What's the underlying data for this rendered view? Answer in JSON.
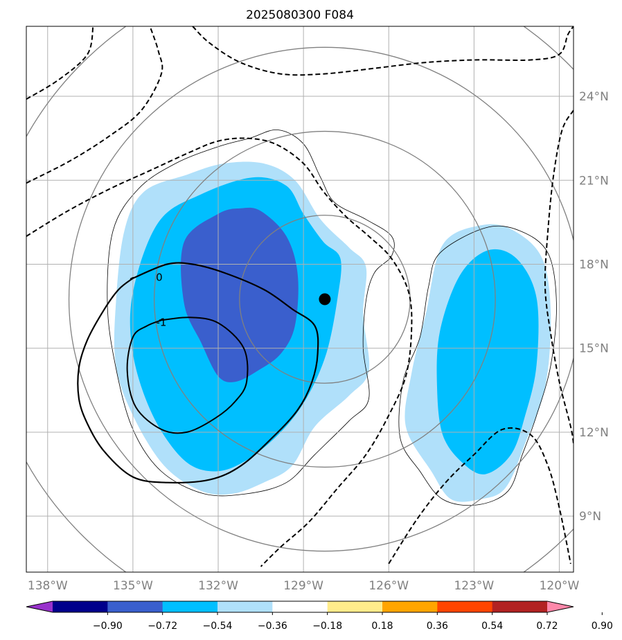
{
  "chart_data": {
    "type": "map-contour",
    "title": "2025080300 F084",
    "xlim": [
      -138.75,
      -119.5
    ],
    "ylim": [
      7.0,
      26.5
    ],
    "grid": true,
    "lon_ticks": [
      {
        "value": -138,
        "label": "138°W"
      },
      {
        "value": -135,
        "label": "135°W"
      },
      {
        "value": -132,
        "label": "132°W"
      },
      {
        "value": -129,
        "label": "129°W"
      },
      {
        "value": -126,
        "label": "126°W"
      },
      {
        "value": -123,
        "label": "123°W"
      },
      {
        "value": -120,
        "label": "120°W"
      }
    ],
    "lat_ticks": [
      {
        "value": 9,
        "label": "9°N"
      },
      {
        "value": 12,
        "label": "12°N"
      },
      {
        "value": 15,
        "label": "15°N"
      },
      {
        "value": 18,
        "label": "18°N"
      },
      {
        "value": 21,
        "label": "21°N"
      },
      {
        "value": 24,
        "label": "24°N"
      }
    ],
    "center_marker": {
      "lon": -128.25,
      "lat": 16.75
    },
    "range_rings_center": {
      "lon": -128.25,
      "lat": 16.75
    },
    "range_rings_radius_deg": [
      3,
      6,
      9,
      12
    ],
    "colorbar": {
      "levels": [
        "−0.90",
        "−0.72",
        "−0.54",
        "−0.36",
        "−0.18",
        "0.18",
        "0.36",
        "0.54",
        "0.72",
        "0.90"
      ],
      "colors": [
        "#9932cc",
        "#00008b",
        "#3a5fcd",
        "#00bfff",
        "#b0e0fa",
        "#ffffff",
        "#ffec8b",
        "#ffa500",
        "#ff4500",
        "#b22222",
        "#ff88aa"
      ],
      "extend": "both"
    },
    "filled_regions": [
      {
        "level": "-0.36 to -0.18",
        "color": "#b0e0fa",
        "points": [
          [
            -134.6,
            20.6
          ],
          [
            -133.1,
            21.2
          ],
          [
            -131.8,
            21.6
          ],
          [
            -130.4,
            21.6
          ],
          [
            -129.3,
            21.0
          ],
          [
            -128.4,
            19.6
          ],
          [
            -127.4,
            18.6
          ],
          [
            -126.8,
            17.9
          ],
          [
            -126.9,
            16.2
          ],
          [
            -126.7,
            14.2
          ],
          [
            -127.4,
            13.3
          ],
          [
            -128.6,
            12.2
          ],
          [
            -129.4,
            10.8
          ],
          [
            -130.4,
            10.2
          ],
          [
            -131.5,
            9.8
          ],
          [
            -132.6,
            9.9
          ],
          [
            -133.9,
            10.8
          ],
          [
            -135.0,
            12.6
          ],
          [
            -135.6,
            14.4
          ],
          [
            -135.6,
            16.6
          ],
          [
            -135.3,
            19.2
          ]
        ]
      },
      {
        "level": "-0.36 to -0.18",
        "color": "#b0e0fa",
        "points": [
          [
            -124.1,
            18.7
          ],
          [
            -122.7,
            19.4
          ],
          [
            -121.6,
            19.2
          ],
          [
            -120.6,
            18.2
          ],
          [
            -120.3,
            16.2
          ],
          [
            -120.5,
            13.6
          ],
          [
            -121.2,
            11.6
          ],
          [
            -121.9,
            10.0
          ],
          [
            -122.8,
            9.6
          ],
          [
            -123.8,
            9.6
          ],
          [
            -124.5,
            10.6
          ],
          [
            -125.4,
            12.2
          ],
          [
            -125.2,
            14.1
          ],
          [
            -124.7,
            16.2
          ]
        ]
      },
      {
        "level": "-0.54 to -0.36",
        "color": "#00bfff",
        "points": [
          [
            -134.1,
            19.5
          ],
          [
            -132.6,
            20.5
          ],
          [
            -130.8,
            21.1
          ],
          [
            -129.6,
            20.8
          ],
          [
            -129.0,
            19.8
          ],
          [
            -128.3,
            18.8
          ],
          [
            -127.7,
            18.2
          ],
          [
            -127.8,
            16.8
          ],
          [
            -128.2,
            14.8
          ],
          [
            -128.9,
            13.2
          ],
          [
            -129.8,
            12.0
          ],
          [
            -131.0,
            11.0
          ],
          [
            -132.1,
            10.6
          ],
          [
            -133.2,
            11.0
          ],
          [
            -134.3,
            12.6
          ],
          [
            -135.0,
            14.8
          ],
          [
            -135.0,
            17.0
          ]
        ]
      },
      {
        "level": "-0.54 to -0.36",
        "color": "#00bfff",
        "points": [
          [
            -123.5,
            17.6
          ],
          [
            -122.5,
            18.5
          ],
          [
            -121.5,
            18.2
          ],
          [
            -120.8,
            16.8
          ],
          [
            -120.8,
            14.4
          ],
          [
            -121.2,
            12.6
          ],
          [
            -121.7,
            11.2
          ],
          [
            -122.6,
            10.5
          ],
          [
            -123.4,
            10.9
          ],
          [
            -124.1,
            11.9
          ],
          [
            -124.3,
            13.6
          ],
          [
            -124.2,
            15.6
          ]
        ]
      },
      {
        "level": "-0.72 to -0.54",
        "color": "#3a5fcd",
        "points": [
          [
            -133.2,
            18.8
          ],
          [
            -132.0,
            19.8
          ],
          [
            -131.2,
            20.0
          ],
          [
            -130.5,
            19.9
          ],
          [
            -129.6,
            19.0
          ],
          [
            -129.2,
            17.6
          ],
          [
            -129.3,
            15.8
          ],
          [
            -129.8,
            14.8
          ],
          [
            -130.6,
            14.2
          ],
          [
            -131.4,
            13.8
          ],
          [
            -132.0,
            14.0
          ],
          [
            -132.6,
            15.2
          ],
          [
            -133.2,
            16.6
          ]
        ]
      }
    ],
    "contours": [
      {
        "label": "0",
        "style": "solid",
        "width": 2.2,
        "points": [
          [
            -135.0,
            17.5
          ],
          [
            -133.8,
            18.0
          ],
          [
            -132.9,
            18.0
          ],
          [
            -131.8,
            17.7
          ],
          [
            -130.4,
            17.1
          ],
          [
            -129.4,
            16.4
          ],
          [
            -128.6,
            15.8
          ],
          [
            -128.5,
            14.8
          ],
          [
            -128.7,
            13.8
          ],
          [
            -129.2,
            12.8
          ],
          [
            -130.1,
            11.8
          ],
          [
            -131.2,
            10.8
          ],
          [
            -132.3,
            10.3
          ],
          [
            -133.8,
            10.2
          ],
          [
            -135.0,
            10.4
          ],
          [
            -136.0,
            11.3
          ],
          [
            -136.6,
            12.3
          ],
          [
            -136.9,
            13.2
          ],
          [
            -136.9,
            14.3
          ],
          [
            -136.6,
            15.3
          ],
          [
            -136.0,
            16.4
          ],
          [
            -135.5,
            17.1
          ],
          [
            -135.0,
            17.5
          ]
        ]
      },
      {
        "label": "-1",
        "style": "solid",
        "width": 2.0,
        "points": [
          [
            -134.0,
            16.0
          ],
          [
            -133.0,
            16.1
          ],
          [
            -132.0,
            15.9
          ],
          [
            -131.1,
            15.0
          ],
          [
            -131.0,
            13.8
          ],
          [
            -131.4,
            13.1
          ],
          [
            -132.1,
            12.5
          ],
          [
            -133.1,
            12.0
          ],
          [
            -134.0,
            12.1
          ],
          [
            -134.9,
            12.9
          ],
          [
            -135.2,
            14.2
          ],
          [
            -135.0,
            15.4
          ],
          [
            -134.5,
            15.8
          ],
          [
            -134.0,
            16.0
          ]
        ]
      },
      {
        "label": "",
        "style": "dashed",
        "width": 2.0,
        "points": [
          [
            -138.75,
            23.9
          ],
          [
            -137.6,
            24.6
          ],
          [
            -136.6,
            25.5
          ],
          [
            -136.4,
            26.5
          ]
        ]
      },
      {
        "label": "",
        "style": "dashed",
        "width": 2.0,
        "points": [
          [
            -138.75,
            20.9
          ],
          [
            -137.2,
            21.7
          ],
          [
            -135.8,
            22.6
          ],
          [
            -134.7,
            23.5
          ],
          [
            -134.0,
            24.8
          ],
          [
            -134.1,
            25.6
          ],
          [
            -134.4,
            26.5
          ]
        ]
      },
      {
        "label": "",
        "style": "dashed",
        "width": 2.0,
        "points": [
          [
            -138.75,
            19.0
          ],
          [
            -137.3,
            19.9
          ],
          [
            -135.8,
            20.7
          ],
          [
            -134.5,
            21.3
          ],
          [
            -133.0,
            22.0
          ],
          [
            -132.0,
            22.4
          ],
          [
            -131.0,
            22.5
          ],
          [
            -130.0,
            22.3
          ],
          [
            -129.0,
            21.6
          ],
          [
            -128.3,
            20.6
          ],
          [
            -127.5,
            19.7
          ],
          [
            -126.7,
            19.0
          ],
          [
            -125.9,
            18.2
          ],
          [
            -125.3,
            17.0
          ],
          [
            -125.2,
            15.6
          ],
          [
            -125.4,
            14.0
          ],
          [
            -126.0,
            12.6
          ],
          [
            -126.8,
            11.2
          ],
          [
            -127.8,
            10.0
          ],
          [
            -128.8,
            8.8
          ],
          [
            -129.8,
            7.9
          ],
          [
            -130.5,
            7.2
          ]
        ]
      },
      {
        "label": "",
        "style": "dashed",
        "width": 2.0,
        "points": [
          [
            -132.9,
            26.5
          ],
          [
            -132.3,
            25.9
          ],
          [
            -131.2,
            25.2
          ],
          [
            -129.8,
            24.8
          ],
          [
            -128.3,
            24.8
          ],
          [
            -126.5,
            25.0
          ],
          [
            -124.8,
            25.2
          ],
          [
            -123.0,
            25.3
          ],
          [
            -121.0,
            25.3
          ],
          [
            -120.0,
            25.5
          ],
          [
            -119.7,
            26.2
          ],
          [
            -119.5,
            26.5
          ]
        ]
      },
      {
        "label": "",
        "style": "dashed",
        "width": 2.0,
        "points": [
          [
            -126.0,
            7.3
          ],
          [
            -125.0,
            8.9
          ],
          [
            -124.0,
            10.2
          ],
          [
            -123.0,
            11.2
          ],
          [
            -122.0,
            12.1
          ],
          [
            -121.0,
            11.9
          ],
          [
            -120.4,
            10.8
          ],
          [
            -120.0,
            9.3
          ],
          [
            -119.6,
            7.3
          ]
        ]
      },
      {
        "label": "",
        "style": "dashed",
        "width": 2.0,
        "points": [
          [
            -119.5,
            23.5
          ],
          [
            -119.9,
            22.8
          ],
          [
            -120.2,
            21.2
          ],
          [
            -120.4,
            19.2
          ],
          [
            -120.5,
            17.2
          ],
          [
            -120.3,
            15.5
          ],
          [
            -120.0,
            13.8
          ],
          [
            -119.6,
            12.2
          ],
          [
            -119.5,
            11.6
          ]
        ]
      }
    ],
    "thin_contours": [
      {
        "points": [
          [
            -134.8,
            20.7
          ],
          [
            -133.5,
            21.6
          ],
          [
            -132.0,
            22.2
          ],
          [
            -130.9,
            22.5
          ],
          [
            -129.9,
            22.8
          ],
          [
            -129.0,
            22.3
          ],
          [
            -128.4,
            21.1
          ],
          [
            -127.9,
            20.2
          ],
          [
            -126.8,
            19.6
          ],
          [
            -125.9,
            19.0
          ],
          [
            -125.9,
            18.3
          ],
          [
            -126.5,
            17.7
          ],
          [
            -126.8,
            16.7
          ],
          [
            -126.9,
            15.0
          ],
          [
            -126.7,
            13.2
          ],
          [
            -127.4,
            12.4
          ],
          [
            -128.6,
            11.2
          ],
          [
            -129.6,
            10.2
          ],
          [
            -131.0,
            9.8
          ],
          [
            -132.5,
            9.8
          ],
          [
            -134.0,
            10.6
          ],
          [
            -135.0,
            12.1
          ],
          [
            -135.6,
            14.3
          ],
          [
            -135.9,
            16.6
          ],
          [
            -135.7,
            19.2
          ]
        ]
      },
      {
        "points": [
          [
            -124.2,
            18.4
          ],
          [
            -122.6,
            19.3
          ],
          [
            -121.4,
            19.2
          ],
          [
            -120.4,
            18.4
          ],
          [
            -120.1,
            16.6
          ],
          [
            -120.3,
            14.4
          ],
          [
            -120.8,
            12.6
          ],
          [
            -121.3,
            11.2
          ],
          [
            -121.8,
            9.9
          ],
          [
            -122.9,
            9.4
          ],
          [
            -124.1,
            9.6
          ],
          [
            -124.9,
            10.6
          ],
          [
            -125.6,
            11.8
          ],
          [
            -125.5,
            13.8
          ],
          [
            -124.9,
            15.4
          ],
          [
            -124.6,
            17.2
          ]
        ]
      }
    ]
  }
}
